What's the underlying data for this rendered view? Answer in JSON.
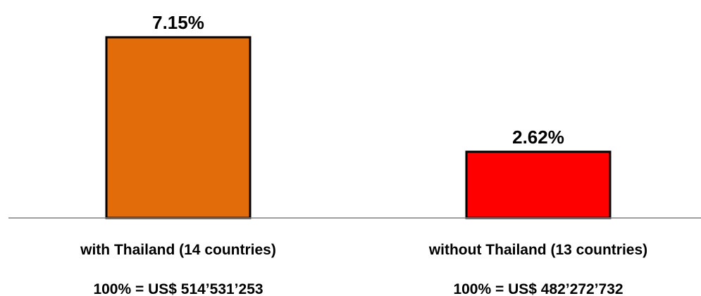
{
  "chart_data": {
    "type": "bar",
    "title": "",
    "xlabel": "",
    "ylabel": "",
    "grid": false,
    "legend": "none",
    "ylim": [
      0,
      7.15
    ],
    "value_suffix": "%",
    "categories": [
      "with Thailand (14 countries)",
      "without Thailand (13 countries)"
    ],
    "values": [
      7.15,
      2.62
    ],
    "value_labels": [
      "7.15%",
      "2.62%"
    ],
    "totals": [
      "100% = US$ 514’531’253",
      "100% = US$ 482’272’732"
    ],
    "colors": [
      "#e36c0a",
      "#ff0000"
    ],
    "edge_color": "#000000",
    "axis_color": "#7f7f7f"
  }
}
